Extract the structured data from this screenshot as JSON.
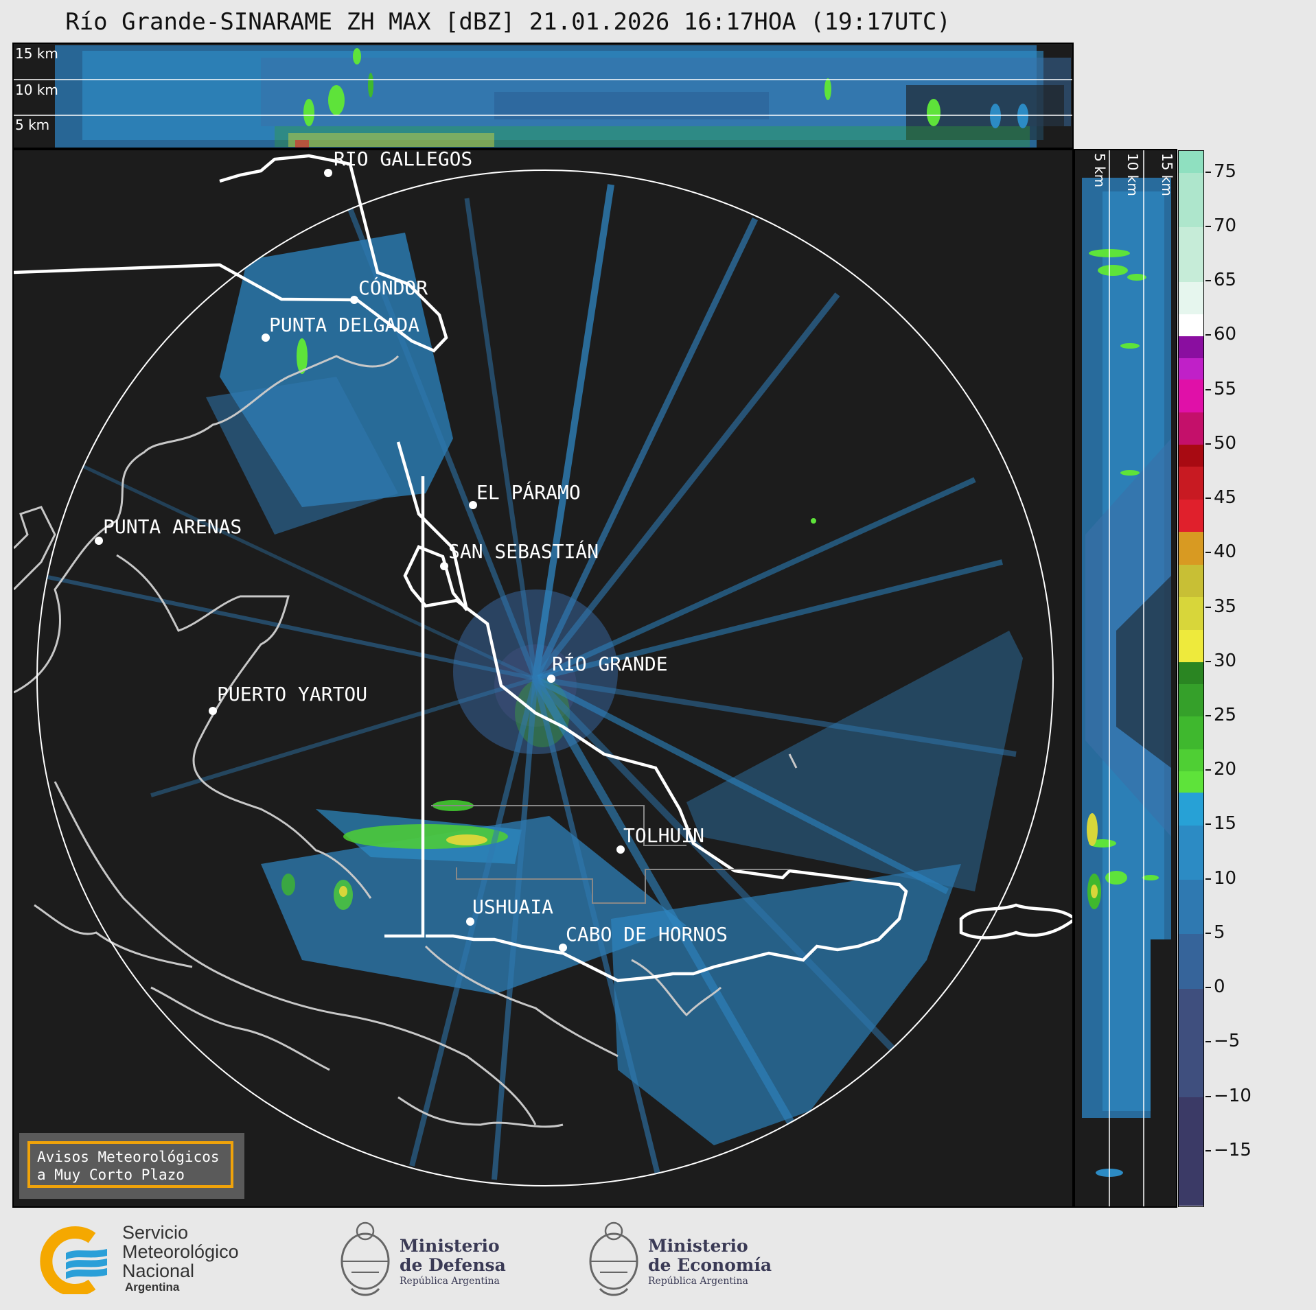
{
  "title": "Río Grande-SINARAME ZH MAX [dBZ] 21.01.2026 16:17HOA (19:17UTC)",
  "top_crosssection": {
    "altitude_labels": [
      "15 km",
      "10 km",
      "5 km"
    ]
  },
  "side_crosssection": {
    "altitude_labels": [
      "5 km",
      "10 km",
      "15 km"
    ]
  },
  "colorbar": {
    "unit": "dBZ",
    "range": [
      -20,
      77
    ],
    "tick_labels": [
      "75",
      "70",
      "65",
      "60",
      "55",
      "50",
      "45",
      "40",
      "35",
      "30",
      "25",
      "20",
      "15",
      "10",
      "5",
      "0",
      "−5",
      "−10",
      "−15"
    ],
    "colors": {
      "-20": "#3b3a66",
      "-10": "#3f4f7e",
      "0": "#36649a",
      "5": "#2f79b1",
      "10": "#2c8bc4",
      "15": "#27a1d6",
      "18": "#5ee33a",
      "20": "#4fcf34",
      "22": "#3fb82e",
      "25": "#35a02a",
      "28": "#2a8522",
      "30": "#eeea3c",
      "33": "#d8d63a",
      "36": "#c8bf35",
      "39": "#d89a22",
      "42": "#e0202c",
      "45": "#c81a22",
      "48": "#a80a12",
      "50": "#c4106a",
      "53": "#e010a8",
      "56": "#c020c8",
      "58": "#8a0ea0",
      "60": "#ffffff",
      "62": "#e6f6ee",
      "65": "#c6ecd8",
      "70": "#aee6cc",
      "75": "#8fe0c0"
    }
  },
  "map": {
    "cities": [
      {
        "name": "RÍO GALLEGOS"
      },
      {
        "name": "CÓNDOR"
      },
      {
        "name": "PUNTA DELGADA"
      },
      {
        "name": "EL PÁRAMO"
      },
      {
        "name": "PUNTA ARENAS"
      },
      {
        "name": "SAN SEBASTIÁN"
      },
      {
        "name": "RÍO GRANDE"
      },
      {
        "name": "PUERTO YARTOU"
      },
      {
        "name": "TOLHUIN"
      },
      {
        "name": "USHUAIA"
      },
      {
        "name": "CABO DE HORNOS"
      }
    ]
  },
  "alert_box": {
    "line1": "Avisos Meteorológicos",
    "line2": "a Muy Corto Plazo"
  },
  "logos": {
    "smn": {
      "line1": "Servicio",
      "line2": "Meteorológico",
      "line3": "Nacional",
      "line4": "Argentina"
    },
    "defensa": {
      "line1": "Ministerio",
      "line2": "de Defensa",
      "line3": "República Argentina"
    },
    "economia": {
      "line1": "Ministerio",
      "line2": "de Economía",
      "line3": "República Argentina"
    }
  }
}
